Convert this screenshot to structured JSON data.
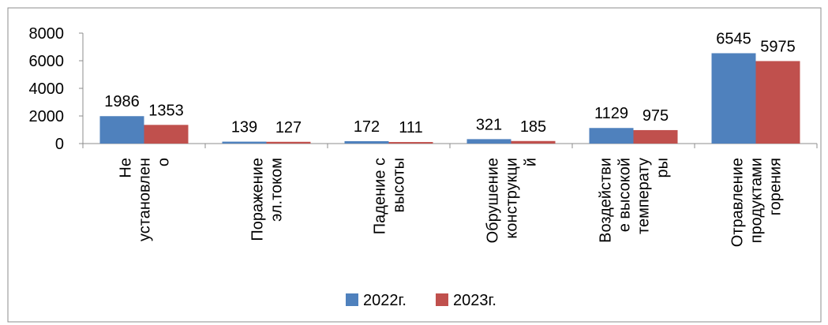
{
  "chart_data": {
    "type": "bar",
    "categories": [
      [
        "Не",
        "установлен",
        "о"
      ],
      [
        "Поражение",
        "эл.током"
      ],
      [
        "Падение с",
        "высоты"
      ],
      [
        "Обрушение",
        "конструкци",
        "й"
      ],
      [
        "Воздействи",
        "е высокой",
        "температу",
        "ры"
      ],
      [
        "Отравление",
        "продуктами",
        "горения"
      ]
    ],
    "series": [
      {
        "name": "2022г.",
        "color": "#4f81bd",
        "values": [
          1986,
          139,
          172,
          321,
          1129,
          6545
        ]
      },
      {
        "name": "2023г.",
        "color": "#c0504d",
        "values": [
          1353,
          127,
          111,
          185,
          975,
          5975
        ]
      }
    ],
    "ylim": [
      0,
      8000
    ],
    "yticks": [
      0,
      2000,
      4000,
      6000,
      8000
    ],
    "grid": false,
    "legend": "bottom",
    "data_labels": true
  }
}
